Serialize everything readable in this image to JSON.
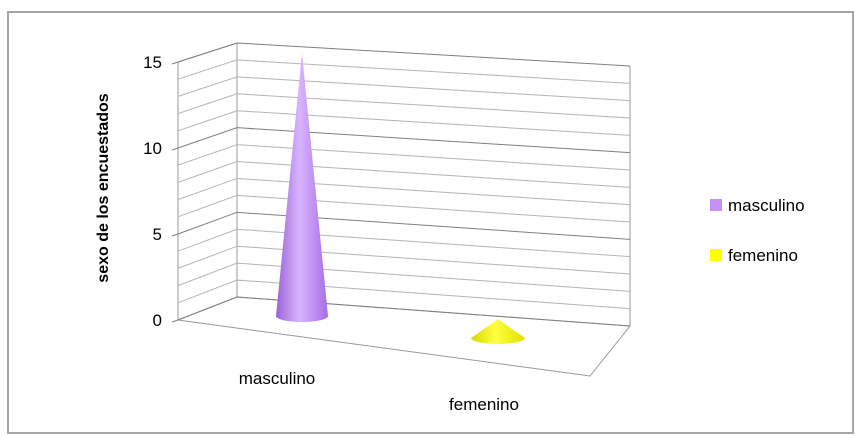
{
  "chart_data": {
    "type": "bar",
    "style": "3d-cone",
    "categories": [
      "masculino",
      "femenino"
    ],
    "series": [
      {
        "name": "masculino",
        "color": "#c58ff5",
        "values": [
          14,
          0
        ]
      },
      {
        "name": "femenino",
        "color": "#ffff00",
        "values": [
          0,
          1
        ]
      }
    ],
    "ylabel": "sexo de los encuestados",
    "ylim": [
      0,
      15
    ],
    "yticks": [
      "0",
      "5",
      "10",
      "15"
    ],
    "grid": true,
    "legend": {
      "position": "right",
      "entries": [
        "masculino",
        "femenino"
      ]
    }
  }
}
